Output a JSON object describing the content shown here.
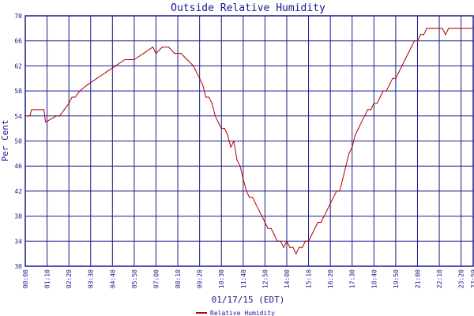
{
  "chart_data": {
    "type": "line",
    "title": "Outside Relative Humidity",
    "xlabel": "01/17/15 (EDT)",
    "ylabel": "Per Cent",
    "ylim": [
      30,
      70
    ],
    "xlim": [
      0,
      1439
    ],
    "grid": true,
    "legend_placement": "bottom-center",
    "y_ticks": [
      "30",
      "34",
      "38",
      "42",
      "46",
      "50",
      "54",
      "58",
      "62",
      "66",
      "70"
    ],
    "x_ticks": [
      "00:00",
      "01:10",
      "02:20",
      "03:30",
      "04:40",
      "05:50",
      "07:00",
      "08:10",
      "09:20",
      "10:30",
      "11:40",
      "12:50",
      "14:00",
      "15:10",
      "16:20",
      "17:30",
      "18:40",
      "19:50",
      "21:00",
      "22:10",
      "23:20",
      "23:59"
    ],
    "series": [
      {
        "name": "Relative Humidity",
        "color": "#b30000",
        "x_unit": "minutes after 00:00",
        "x": [
          0,
          15,
          20,
          60,
          65,
          100,
          110,
          125,
          140,
          150,
          160,
          175,
          200,
          230,
          260,
          290,
          320,
          350,
          380,
          410,
          420,
          440,
          460,
          480,
          500,
          520,
          540,
          550,
          560,
          570,
          580,
          590,
          600,
          610,
          620,
          630,
          640,
          650,
          660,
          670,
          680,
          690,
          700,
          710,
          720,
          730,
          740,
          750,
          760,
          770,
          780,
          790,
          800,
          810,
          820,
          830,
          840,
          850,
          860,
          870,
          880,
          890,
          900,
          910,
          920,
          930,
          940,
          950,
          960,
          970,
          980,
          990,
          1000,
          1010,
          1020,
          1030,
          1040,
          1050,
          1060,
          1070,
          1080,
          1090,
          1100,
          1110,
          1120,
          1130,
          1140,
          1150,
          1160,
          1170,
          1180,
          1190,
          1200,
          1210,
          1220,
          1230,
          1240,
          1250,
          1260,
          1270,
          1280,
          1290,
          1300,
          1310,
          1320,
          1330,
          1340,
          1350,
          1360,
          1370,
          1380,
          1390,
          1400,
          1410,
          1420,
          1430,
          1439
        ],
        "y": [
          54,
          54,
          55,
          55,
          53,
          54,
          54,
          55,
          56,
          57,
          57,
          58,
          59,
          60,
          61,
          62,
          63,
          63,
          64,
          65,
          64,
          65,
          65,
          64,
          64,
          63,
          62,
          61,
          60,
          59,
          57,
          57,
          56,
          54,
          53,
          52,
          52,
          51,
          49,
          50,
          47,
          46,
          44,
          42,
          41,
          41,
          40,
          39,
          38,
          37,
          36,
          36,
          35,
          34,
          34,
          33,
          34,
          33,
          33,
          32,
          33,
          33,
          34,
          34,
          35,
          36,
          37,
          37,
          38,
          39,
          40,
          41,
          42,
          42,
          44,
          46,
          48,
          49,
          51,
          52,
          53,
          54,
          55,
          55,
          56,
          56,
          57,
          58,
          58,
          59,
          60,
          60,
          61,
          62,
          63,
          64,
          65,
          66,
          66,
          67,
          67,
          68,
          68,
          68,
          68,
          68,
          68,
          67,
          68,
          68,
          68,
          68,
          68,
          68,
          68,
          68,
          68
        ]
      }
    ]
  }
}
